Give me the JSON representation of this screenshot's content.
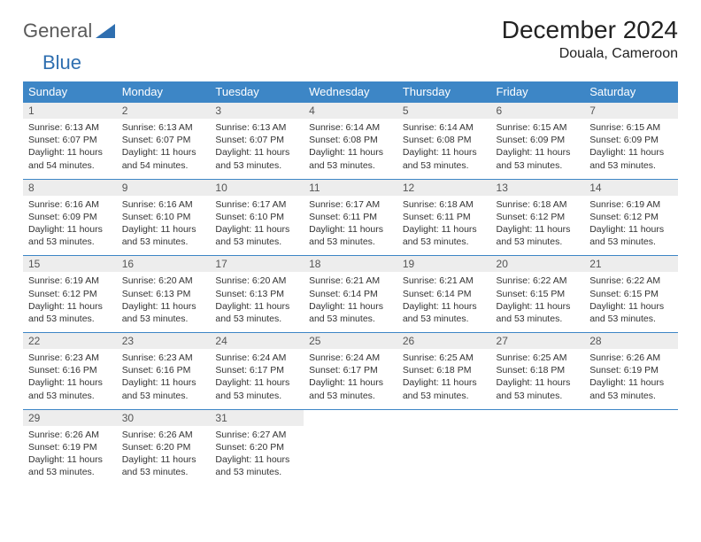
{
  "logo": {
    "word1": "General",
    "word2": "Blue"
  },
  "title": "December 2024",
  "subtitle": "Douala, Cameroon",
  "colors": {
    "header_bg": "#3d86c6",
    "header_fg": "#ffffff",
    "daynum_bg": "#ededed",
    "daynum_fg": "#555555",
    "text_fg": "#333333",
    "rule": "#3d86c6",
    "logo_gray": "#5a5a5a",
    "logo_blue": "#2f6fb0"
  },
  "weekdays": [
    "Sunday",
    "Monday",
    "Tuesday",
    "Wednesday",
    "Thursday",
    "Friday",
    "Saturday"
  ],
  "days": [
    {
      "n": "1",
      "sr": "6:13 AM",
      "ss": "6:07 PM",
      "dl": "11 hours and 54 minutes."
    },
    {
      "n": "2",
      "sr": "6:13 AM",
      "ss": "6:07 PM",
      "dl": "11 hours and 54 minutes."
    },
    {
      "n": "3",
      "sr": "6:13 AM",
      "ss": "6:07 PM",
      "dl": "11 hours and 53 minutes."
    },
    {
      "n": "4",
      "sr": "6:14 AM",
      "ss": "6:08 PM",
      "dl": "11 hours and 53 minutes."
    },
    {
      "n": "5",
      "sr": "6:14 AM",
      "ss": "6:08 PM",
      "dl": "11 hours and 53 minutes."
    },
    {
      "n": "6",
      "sr": "6:15 AM",
      "ss": "6:09 PM",
      "dl": "11 hours and 53 minutes."
    },
    {
      "n": "7",
      "sr": "6:15 AM",
      "ss": "6:09 PM",
      "dl": "11 hours and 53 minutes."
    },
    {
      "n": "8",
      "sr": "6:16 AM",
      "ss": "6:09 PM",
      "dl": "11 hours and 53 minutes."
    },
    {
      "n": "9",
      "sr": "6:16 AM",
      "ss": "6:10 PM",
      "dl": "11 hours and 53 minutes."
    },
    {
      "n": "10",
      "sr": "6:17 AM",
      "ss": "6:10 PM",
      "dl": "11 hours and 53 minutes."
    },
    {
      "n": "11",
      "sr": "6:17 AM",
      "ss": "6:11 PM",
      "dl": "11 hours and 53 minutes."
    },
    {
      "n": "12",
      "sr": "6:18 AM",
      "ss": "6:11 PM",
      "dl": "11 hours and 53 minutes."
    },
    {
      "n": "13",
      "sr": "6:18 AM",
      "ss": "6:12 PM",
      "dl": "11 hours and 53 minutes."
    },
    {
      "n": "14",
      "sr": "6:19 AM",
      "ss": "6:12 PM",
      "dl": "11 hours and 53 minutes."
    },
    {
      "n": "15",
      "sr": "6:19 AM",
      "ss": "6:12 PM",
      "dl": "11 hours and 53 minutes."
    },
    {
      "n": "16",
      "sr": "6:20 AM",
      "ss": "6:13 PM",
      "dl": "11 hours and 53 minutes."
    },
    {
      "n": "17",
      "sr": "6:20 AM",
      "ss": "6:13 PM",
      "dl": "11 hours and 53 minutes."
    },
    {
      "n": "18",
      "sr": "6:21 AM",
      "ss": "6:14 PM",
      "dl": "11 hours and 53 minutes."
    },
    {
      "n": "19",
      "sr": "6:21 AM",
      "ss": "6:14 PM",
      "dl": "11 hours and 53 minutes."
    },
    {
      "n": "20",
      "sr": "6:22 AM",
      "ss": "6:15 PM",
      "dl": "11 hours and 53 minutes."
    },
    {
      "n": "21",
      "sr": "6:22 AM",
      "ss": "6:15 PM",
      "dl": "11 hours and 53 minutes."
    },
    {
      "n": "22",
      "sr": "6:23 AM",
      "ss": "6:16 PM",
      "dl": "11 hours and 53 minutes."
    },
    {
      "n": "23",
      "sr": "6:23 AM",
      "ss": "6:16 PM",
      "dl": "11 hours and 53 minutes."
    },
    {
      "n": "24",
      "sr": "6:24 AM",
      "ss": "6:17 PM",
      "dl": "11 hours and 53 minutes."
    },
    {
      "n": "25",
      "sr": "6:24 AM",
      "ss": "6:17 PM",
      "dl": "11 hours and 53 minutes."
    },
    {
      "n": "26",
      "sr": "6:25 AM",
      "ss": "6:18 PM",
      "dl": "11 hours and 53 minutes."
    },
    {
      "n": "27",
      "sr": "6:25 AM",
      "ss": "6:18 PM",
      "dl": "11 hours and 53 minutes."
    },
    {
      "n": "28",
      "sr": "6:26 AM",
      "ss": "6:19 PM",
      "dl": "11 hours and 53 minutes."
    },
    {
      "n": "29",
      "sr": "6:26 AM",
      "ss": "6:19 PM",
      "dl": "11 hours and 53 minutes."
    },
    {
      "n": "30",
      "sr": "6:26 AM",
      "ss": "6:20 PM",
      "dl": "11 hours and 53 minutes."
    },
    {
      "n": "31",
      "sr": "6:27 AM",
      "ss": "6:20 PM",
      "dl": "11 hours and 53 minutes."
    }
  ],
  "labels": {
    "sunrise": "Sunrise: ",
    "sunset": "Sunset: ",
    "daylight": "Daylight: "
  }
}
